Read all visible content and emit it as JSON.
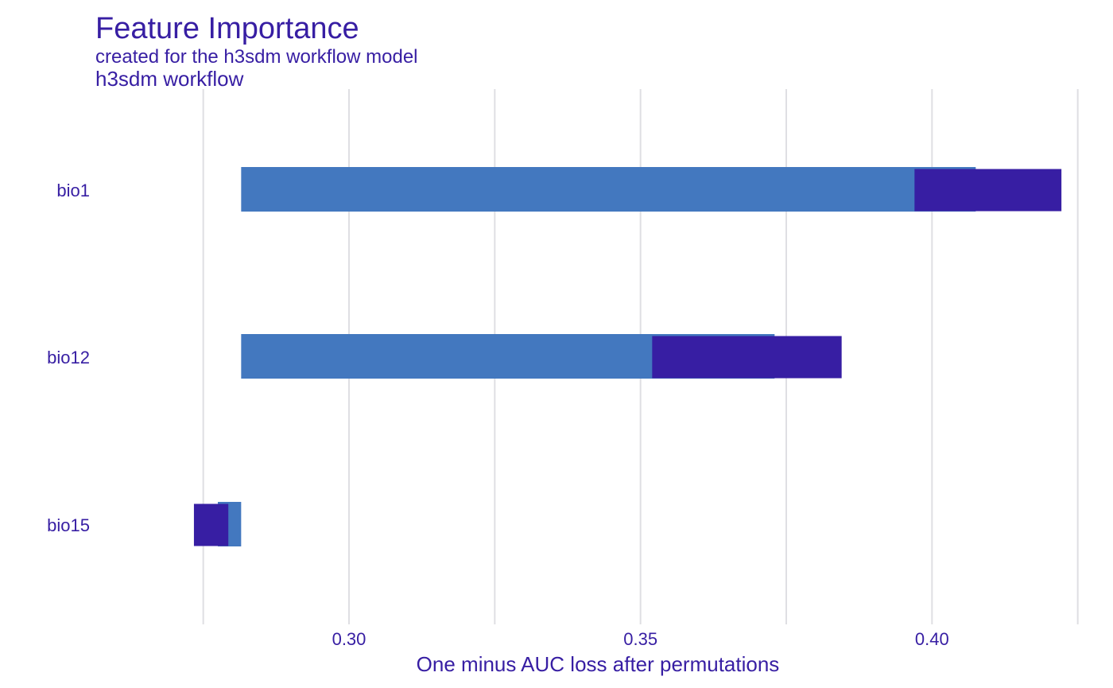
{
  "chart_data": {
    "type": "bar",
    "title": "Feature Importance",
    "subtitle": "created for the h3sdm workflow model",
    "model_label": "h3sdm workflow",
    "xlabel": "One minus AUC loss after permutations",
    "ylabel": "",
    "xlim": [
      0.2565,
      0.429
    ],
    "x_ticks": [
      0.3,
      0.35,
      0.4
    ],
    "x_tick_labels": [
      "0.30",
      "0.35",
      "0.40"
    ],
    "minor_gridlines": [
      0.275,
      0.325,
      0.375,
      0.425
    ],
    "baseline": 0.2815,
    "categories": [
      "bio1",
      "bio12",
      "bio15"
    ],
    "series": [
      {
        "name": "light bar (variable dropout loss)",
        "values": [
          0.4075,
          0.373,
          0.2775
        ]
      },
      {
        "name": "dark bar (mean dropout loss)",
        "values": [
          0.397,
          0.352,
          0.2765
        ]
      }
    ],
    "dark_bar_ends": [
      0.4222,
      0.3845,
      0.2765
    ],
    "dark_bar_starts": [
      0.397,
      0.352,
      0.2822
    ],
    "colors": {
      "text": "#371ea3",
      "light_bar": "#4378bf",
      "dark_bar": "#371ea3",
      "grid": "#dfdfe3"
    }
  }
}
